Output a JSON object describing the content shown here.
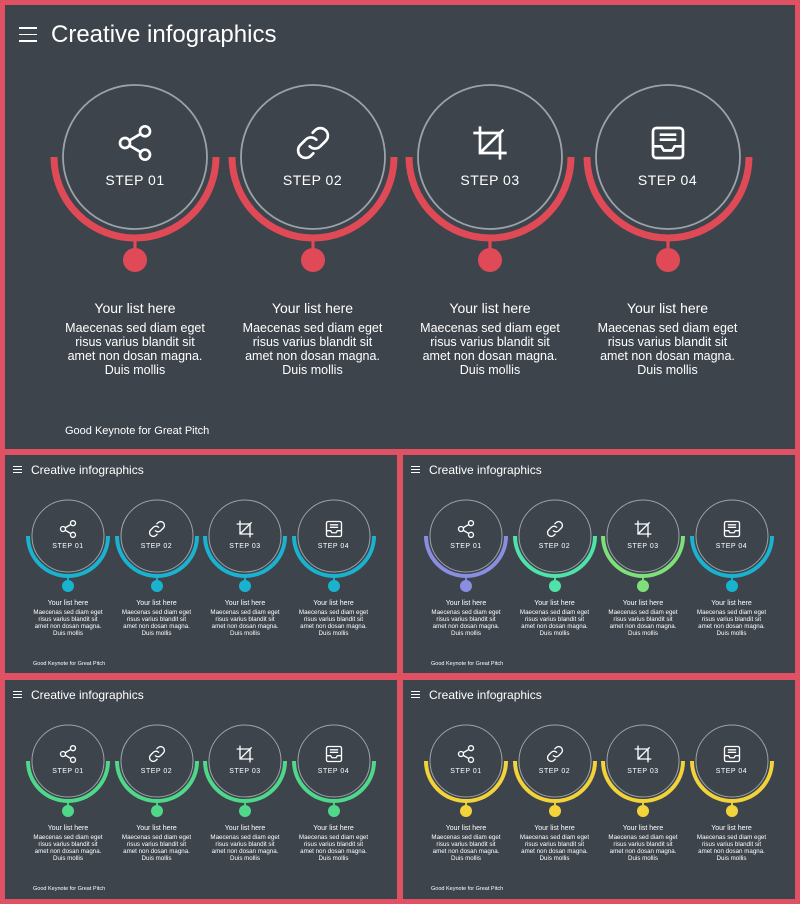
{
  "slide_title": "Creative infographics",
  "footer": "Good Keynote for Great Pitch",
  "steps": [
    {
      "label": "STEP 01",
      "icon": "share-icon",
      "list_title": "Your list here",
      "description": "Maecenas sed diam eget risus varius blandit sit amet non dosan magna. Duis mollis"
    },
    {
      "label": "STEP 02",
      "icon": "link-icon",
      "list_title": "Your list here",
      "description": "Maecenas sed diam eget risus varius blandit sit amet non dosan magna. Duis mollis"
    },
    {
      "label": "STEP 03",
      "icon": "crop-icon",
      "list_title": "Your list here",
      "description": "Maecenas sed diam eget risus varius blandit sit amet non dosan magna. Duis mollis"
    },
    {
      "label": "STEP 04",
      "icon": "inbox-icon",
      "list_title": "Your list here",
      "description": "Maecenas sed diam eget risus varius blandit sit amet non dosan magna. Duis mollis"
    }
  ],
  "colors": {
    "frame": "#e05263",
    "background": "#3d444c",
    "ring_outline": "#9ba2aa",
    "variant_red": [
      "#e04a56",
      "#e04a56",
      "#e04a56",
      "#e04a56"
    ],
    "variant_cyan": [
      "#1ab3cf",
      "#1ab3cf",
      "#1ab3cf",
      "#1ab3cf"
    ],
    "variant_gradient": [
      "#8a8ee0",
      "#4ee3a8",
      "#7fe07a",
      "#1ab3cf"
    ],
    "variant_green": [
      "#4fd889",
      "#4fd889",
      "#4fd889",
      "#4fd889"
    ],
    "variant_yellow": [
      "#f2d33a",
      "#f2d33a",
      "#f2d33a",
      "#f2d33a"
    ]
  }
}
